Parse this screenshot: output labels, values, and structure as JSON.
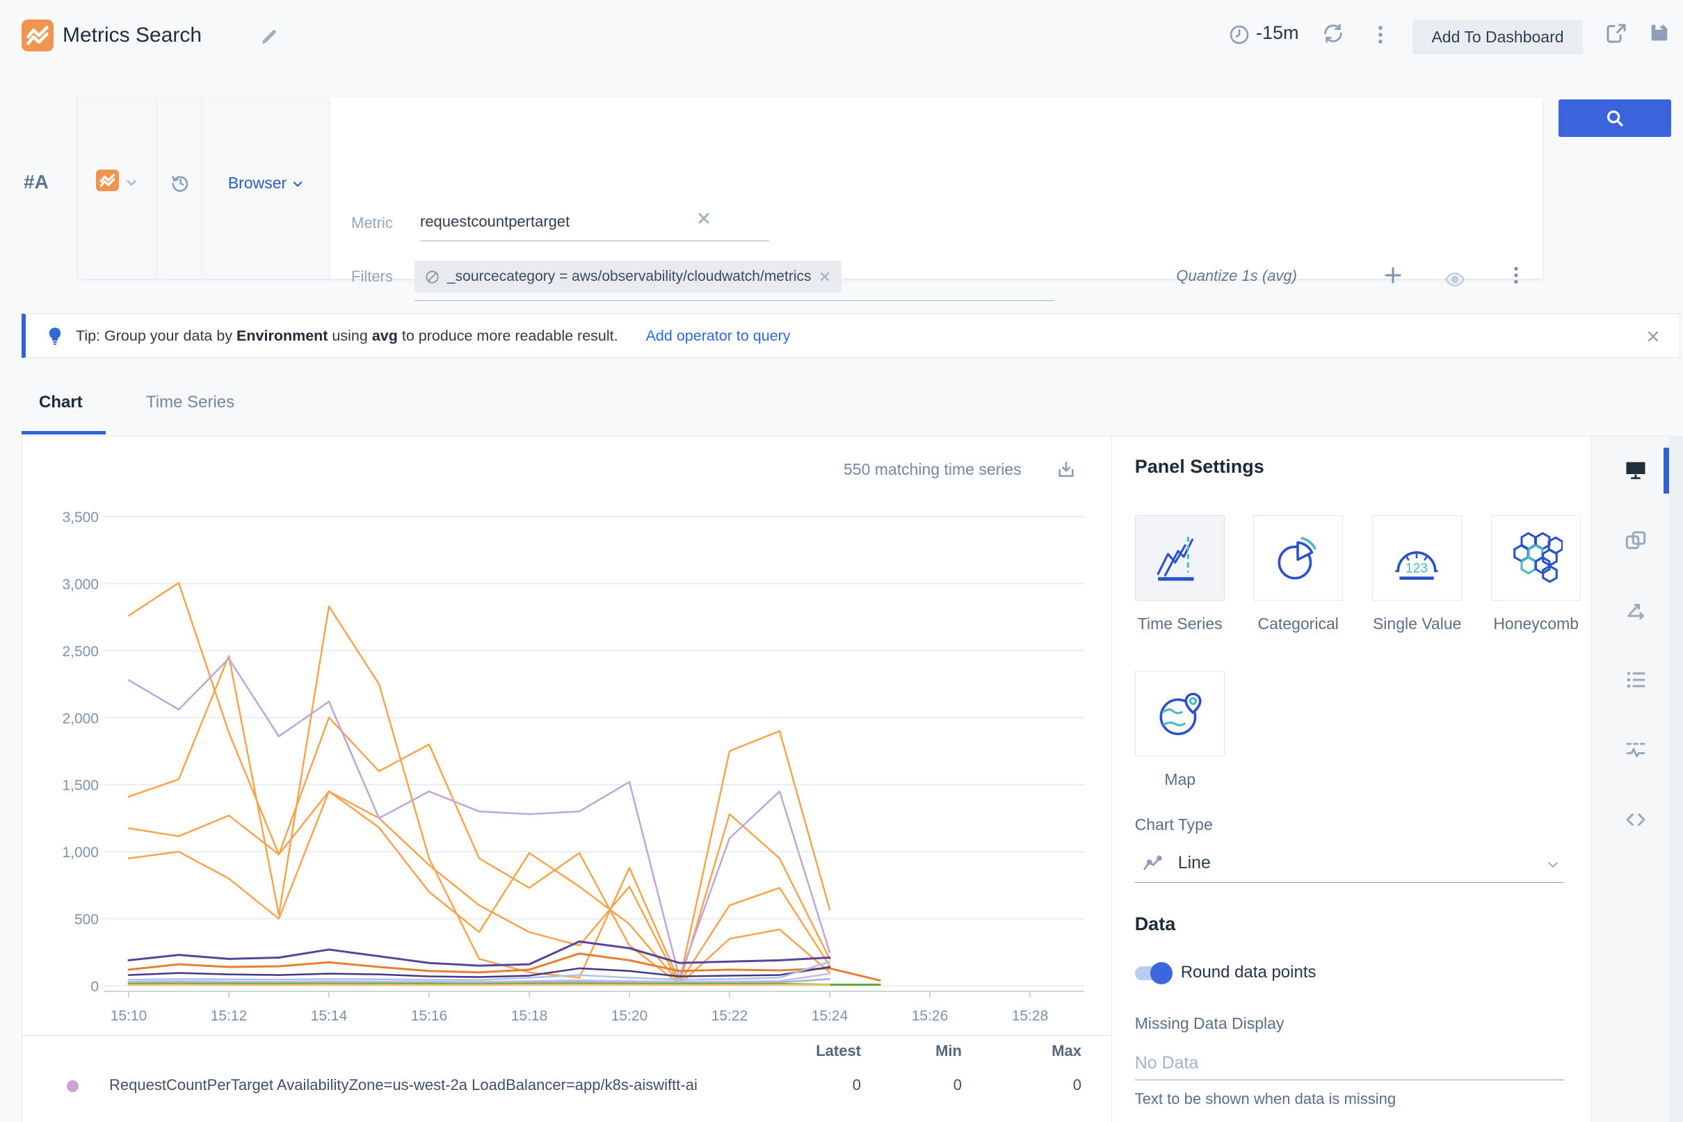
{
  "header": {
    "title": "Metrics Search",
    "time_range": "-15m",
    "add_to_dashboard_label": "Add To Dashboard"
  },
  "query": {
    "row_label": "#A",
    "source_selector": "Browser",
    "metric_label": "Metric",
    "metric_value": "requestcountpertarget",
    "filters_label": "Filters",
    "filter_chip": "_sourcecategory = aws/observability/cloudwatch/metrics",
    "add_operator_label": "Add Operator",
    "quantize_label": "Quantize 1s (avg)"
  },
  "tip": {
    "t1": "Tip: Group your data by ",
    "b1": "Environment",
    "t2": " using ",
    "b2": "avg",
    "t3": " to produce more readable result.",
    "link": "Add operator to query"
  },
  "tabs": [
    {
      "label": "Chart",
      "active": true
    },
    {
      "label": "Time Series",
      "active": false
    }
  ],
  "chart": {
    "matching_text": "550 matching time series"
  },
  "chart_data": {
    "type": "line",
    "title": "",
    "xlabel": "",
    "ylabel": "",
    "grid": true,
    "legend_position": "none",
    "x_start": "15:10",
    "minutes_per_point": 1,
    "x_tick_labels": [
      "15:10",
      "15:12",
      "15:14",
      "15:16",
      "15:18",
      "15:20",
      "15:22",
      "15:24",
      "15:26",
      "15:28"
    ],
    "ylim": [
      0,
      3500
    ],
    "y_ticks": [
      0,
      500,
      1000,
      1500,
      2000,
      2500,
      3000,
      3500
    ],
    "y_tick_labels": [
      "0",
      "500",
      "1,000",
      "1,500",
      "2,000",
      "2,500",
      "3,000",
      "3,500"
    ],
    "series": [
      {
        "name": "series-1",
        "color": "#f6a54d",
        "width": 2.5,
        "values": [
          2760,
          3005,
          1890,
          980,
          1450,
          1180,
          700,
          400,
          990,
          740,
          460,
          20,
          600,
          730,
          150
        ]
      },
      {
        "name": "series-2",
        "color": "#f6a54d",
        "width": 2.5,
        "values": [
          1410,
          1540,
          2460,
          530,
          2830,
          2250,
          950,
          200,
          100,
          60,
          880,
          30,
          1750,
          1900,
          570
        ]
      },
      {
        "name": "series-3",
        "color": "#f6a54d",
        "width": 2.5,
        "values": [
          1175,
          1115,
          1270,
          980,
          2000,
          1600,
          1800,
          950,
          730,
          990,
          300,
          15,
          1280,
          950,
          200
        ]
      },
      {
        "name": "series-4",
        "color": "#f6a54d",
        "width": 2.5,
        "values": [
          950,
          1000,
          800,
          500,
          1450,
          1250,
          900,
          600,
          400,
          300,
          740,
          10,
          350,
          420,
          100
        ]
      },
      {
        "name": "series-5",
        "color": "#bda6dd",
        "width": 2.5,
        "values": [
          2280,
          2060,
          2440,
          1860,
          2120,
          1250,
          1450,
          1300,
          1280,
          1300,
          1520,
          60,
          1100,
          1450,
          250
        ]
      },
      {
        "name": "series-6",
        "color": "#5b4397",
        "width": 3,
        "values": [
          190,
          230,
          200,
          210,
          270,
          220,
          170,
          150,
          160,
          330,
          280,
          170,
          180,
          190,
          210
        ]
      },
      {
        "name": "series-7",
        "color": "#e87f2f",
        "width": 3,
        "values": [
          120,
          160,
          140,
          145,
          175,
          140,
          110,
          100,
          120,
          240,
          190,
          110,
          120,
          115,
          130,
          40
        ]
      },
      {
        "name": "series-8",
        "color": "#463687",
        "width": 2.5,
        "values": [
          80,
          95,
          85,
          80,
          90,
          85,
          70,
          65,
          75,
          130,
          110,
          70,
          75,
          80,
          140
        ]
      },
      {
        "name": "series-9",
        "color": "#a9c6e4",
        "width": 2.5,
        "values": [
          45,
          50,
          48,
          46,
          50,
          48,
          45,
          42,
          60,
          80,
          60,
          45,
          50,
          60,
          180
        ]
      },
      {
        "name": "series-10",
        "color": "#cbb9e6",
        "width": 2.5,
        "values": [
          30,
          35,
          32,
          30,
          34,
          32,
          30,
          28,
          35,
          40,
          35,
          30,
          32,
          35,
          90
        ]
      },
      {
        "name": "series-11",
        "color": "#9fb3c8",
        "width": 2.5,
        "values": [
          22,
          24,
          23,
          22,
          24,
          23,
          22,
          20,
          25,
          28,
          24,
          22,
          23,
          25,
          50
        ]
      },
      {
        "name": "series-12",
        "color": "#63a83c",
        "width": 3,
        "values": [
          12,
          13,
          12,
          12,
          13,
          12,
          12,
          11,
          13,
          14,
          13,
          12,
          12,
          13,
          8,
          8
        ]
      },
      {
        "name": "series-13",
        "color": "#f0c468",
        "width": 2.5,
        "values": [
          6,
          7,
          6,
          6,
          7,
          6,
          6,
          6,
          7,
          8,
          7,
          6,
          6,
          7,
          8
        ]
      }
    ]
  },
  "legend": {
    "columns": [
      "Latest",
      "Min",
      "Max"
    ],
    "rows": [
      {
        "color": "#c9a3d6",
        "label": "RequestCountPerTarget AvailabilityZone=us-west-2a LoadBalancer=app/k8s-aiswiftt-ai",
        "latest": "0",
        "min": "0",
        "max": "0"
      }
    ]
  },
  "panel_settings": {
    "title": "Panel Settings",
    "types": [
      {
        "label": "Time Series",
        "selected": true
      },
      {
        "label": "Categorical",
        "selected": false
      },
      {
        "label": "Single Value",
        "selected": false
      },
      {
        "label": "Honeycomb",
        "selected": false
      },
      {
        "label": "Map",
        "selected": false
      }
    ],
    "chart_type_label": "Chart Type",
    "chart_type_value": "Line",
    "data_heading": "Data",
    "round_toggle_label": "Round data points",
    "round_toggle_on": true,
    "missing_label": "Missing Data Display",
    "missing_placeholder": "No Data",
    "missing_help": "Text to be shown when data is missing",
    "toolbar_icons": [
      "monitor-icon",
      "copy-icon",
      "axes-icon",
      "list-icon",
      "pulse-icon",
      "code-icon"
    ]
  },
  "colors": {
    "accent_blue": "#2f62d8",
    "search_button": "#3a63dc",
    "brand_orange": "#f0954f"
  }
}
